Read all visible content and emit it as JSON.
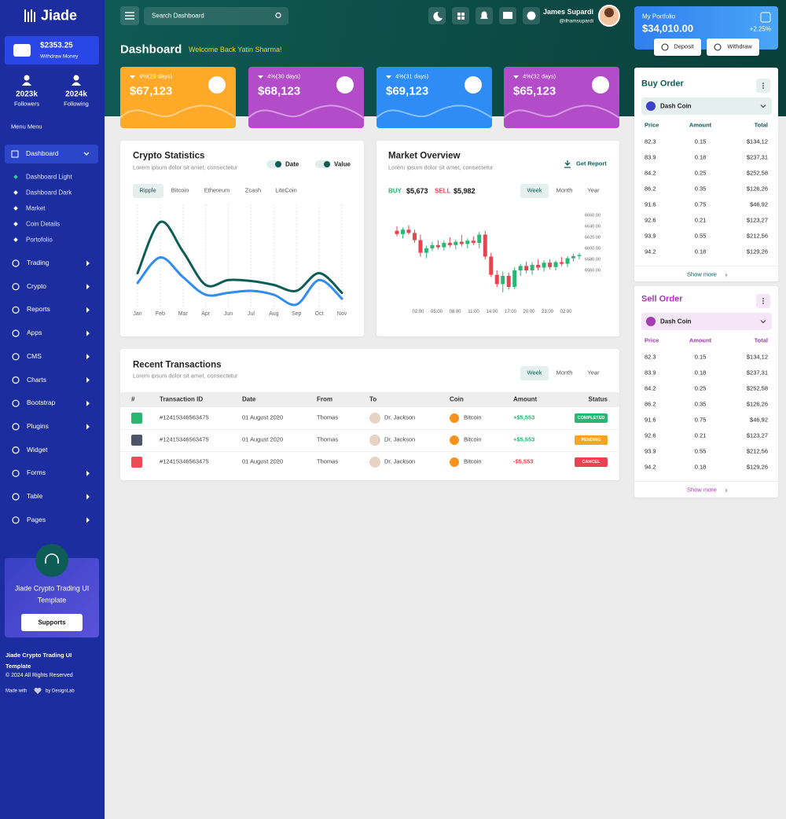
{
  "sidebar": {
    "brand": "Jiade",
    "wallet": {
      "amount": "$2353.25",
      "label": "Withdraw Money"
    },
    "stats": [
      {
        "value": "2023k",
        "label": "Followers"
      },
      {
        "value": "2024k",
        "label": "Following"
      }
    ],
    "menu_title": "Menu Menu",
    "active_item": "Dashboard",
    "submenu": [
      "Dashboard Light",
      "Dashboard Dark",
      "Market",
      "Coin Details",
      "Portofolio"
    ],
    "menu": [
      "Trading",
      "Crypto",
      "Reports",
      "Apps",
      "CMS",
      "Charts",
      "Bootstrap",
      "Plugins",
      "Widget",
      "Forms",
      "Table",
      "Pages"
    ],
    "promo": {
      "title": "Jiade Crypto Trading UI Template",
      "button": "Supports"
    },
    "footer": {
      "title": "Jiade Crypto Trading UI Template",
      "copyright": "© 2024 All Rights Reserved",
      "made_with": "Made with",
      "by": "by DesignLab"
    }
  },
  "header": {
    "search": "Search Dashboard",
    "user": {
      "name": "James Supardi",
      "handle": "@ilhamsupardi"
    },
    "page_title": "Dashboard",
    "welcome": "Welcome Back Yatin Sharma!"
  },
  "portfolio": {
    "label": "My Portfolio",
    "value": "$34,010.00",
    "change": "+2.25%",
    "deposit": "Deposit",
    "withdraw": "Withdraw"
  },
  "cards": [
    {
      "change": "4%(29 days)",
      "value": "$67,123"
    },
    {
      "change": "4%(30 days)",
      "value": "$68,123"
    },
    {
      "change": "4%(31 days)",
      "value": "$69,123"
    },
    {
      "change": "4%(32 days)",
      "value": "$65,123"
    }
  ],
  "crypto_statistics": {
    "title": "Crypto Statistics",
    "subtitle": "Lorem ipsum dolor sit amet, consectetur",
    "toggles": [
      "Date",
      "Value"
    ],
    "tabs": [
      "Ripple",
      "Bitcoin",
      "Ethereum",
      "Zcash",
      "LiteCoin"
    ],
    "chart_data": {
      "type": "line",
      "categories": [
        "Jan",
        "Feb",
        "Mar",
        "Apr",
        "Jun",
        "Jul",
        "Aug",
        "Sep",
        "Oct",
        "Nov"
      ],
      "ylim": [
        0,
        100
      ],
      "grid": true,
      "series": [
        {
          "color": "#0d5c56",
          "values": [
            34,
            86,
            56,
            22,
            27,
            26,
            22,
            16,
            34,
            14
          ]
        },
        {
          "color": "#2f8cf0",
          "values": [
            24,
            50,
            30,
            12,
            14,
            16,
            12,
            2,
            27,
            8
          ]
        }
      ]
    }
  },
  "market_overview": {
    "title": "Market Overview",
    "subtitle": "Lorem ipsum dolor sit amet, consectetur",
    "report": "Get Report",
    "buy_label": "BUY",
    "buy": "$5,673",
    "sell_label": "SELL",
    "sell": "$5,982",
    "tabs": [
      "Week",
      "Month",
      "Year"
    ],
    "chart_data": {
      "type": "candlestick",
      "xtick_labels": [
        "02:00",
        "05:00",
        "08:00",
        "11:00",
        "14:00",
        "17:00",
        "20:00",
        "23:00",
        "02:00"
      ],
      "ylim": [
        6500,
        6660
      ],
      "yticks": [
        {
          "value": 6660,
          "label": "6660.00"
        },
        {
          "value": 6640,
          "label": "6640.00"
        },
        {
          "value": 6620,
          "label": "6620.00"
        },
        {
          "value": 6600,
          "label": "6600.00"
        },
        {
          "value": 6580,
          "label": "6580.00"
        },
        {
          "value": 6560,
          "label": "6560.00"
        }
      ],
      "grid": false,
      "up_color": "#2bb673",
      "down_color": "#e8434e",
      "open": [
        6632,
        6626,
        6634,
        6628,
        6615,
        6592,
        6600,
        6606,
        6602,
        6610,
        6606,
        6612,
        6608,
        6614,
        6610,
        6625,
        6585,
        6552,
        6535,
        6550,
        6530,
        6560,
        6568,
        6560,
        6570,
        6565,
        6574,
        6566,
        6575,
        6572,
        6582,
        6586
      ],
      "high": [
        6640,
        6638,
        6642,
        6634,
        6625,
        6605,
        6612,
        6615,
        6614,
        6620,
        6616,
        6624,
        6618,
        6622,
        6630,
        6632,
        6592,
        6560,
        6558,
        6556,
        6566,
        6572,
        6576,
        6575,
        6580,
        6578,
        6580,
        6578,
        6584,
        6586,
        6590,
        6592
      ],
      "low": [
        6622,
        6618,
        6625,
        6610,
        6585,
        6582,
        6595,
        6598,
        6596,
        6602,
        6598,
        6604,
        6600,
        6606,
        6600,
        6580,
        6548,
        6530,
        6520,
        6525,
        6526,
        6550,
        6555,
        6552,
        6560,
        6558,
        6562,
        6560,
        6568,
        6566,
        6576,
        6580
      ],
      "close": [
        6626,
        6634,
        6628,
        6615,
        6592,
        6600,
        6606,
        6602,
        6610,
        6606,
        6612,
        6608,
        6614,
        6610,
        6625,
        6585,
        6552,
        6535,
        6550,
        6530,
        6560,
        6568,
        6560,
        6570,
        6565,
        6574,
        6566,
        6575,
        6572,
        6582,
        6586,
        6588
      ]
    }
  },
  "transactions": {
    "title": "Recent Transactions",
    "subtitle": "Lorem ipsum dolor sit amet, consectetur",
    "tabs": [
      "Week",
      "Month",
      "Year"
    ],
    "columns": [
      "#",
      "Transaction ID",
      "Date",
      "From",
      "To",
      "Coin",
      "Amount",
      "Status"
    ],
    "rows": [
      [
        "#12415346563475",
        "01 August 2020",
        "Thomas",
        "Dr. Jackson",
        "Bitcoin",
        "+$5,553",
        "COMPLETED"
      ],
      [
        "#12415346563475",
        "01 August 2020",
        "Thomas",
        "Dr. Jackson",
        "Bitcoin",
        "+$5,553",
        "PENDING"
      ],
      [
        "#12415346563475",
        "01 August 2020",
        "Thomas",
        "Dr. Jackson",
        "Bitcoin",
        "-$5,553",
        "CANCEL"
      ]
    ]
  },
  "buy_order": {
    "title": "Buy Order",
    "coin": "Dash Coin",
    "columns": [
      "Price",
      "Amount",
      "Total"
    ],
    "rows": [
      [
        "82.3",
        "0.15",
        "$134,12"
      ],
      [
        "83.9",
        "0.18",
        "$237,31"
      ],
      [
        "84.2",
        "0.25",
        "$252,58"
      ],
      [
        "86.2",
        "0.35",
        "$126,26"
      ],
      [
        "91.6",
        "0.75",
        "$46,92"
      ],
      [
        "92.6",
        "0.21",
        "$123,27"
      ],
      [
        "93.9",
        "0.55",
        "$212,56"
      ],
      [
        "94.2",
        "0.18",
        "$129,26"
      ]
    ],
    "show_more": "Show more"
  },
  "sell_order": {
    "title": "Sell Order",
    "coin": "Dash Coin",
    "columns": [
      "Price",
      "Amount",
      "Total"
    ],
    "rows": [
      [
        "82.3",
        "0.15",
        "$134,12"
      ],
      [
        "83.9",
        "0.18",
        "$237,31"
      ],
      [
        "84.2",
        "0.25",
        "$252,58"
      ],
      [
        "86.2",
        "0.35",
        "$126,26"
      ],
      [
        "91.6",
        "0.75",
        "$46,92"
      ],
      [
        "92.6",
        "0.21",
        "$123,27"
      ],
      [
        "93.9",
        "0.55",
        "$212,56"
      ],
      [
        "94.2",
        "0.18",
        "$129,26"
      ]
    ],
    "show_more": "Show more"
  }
}
